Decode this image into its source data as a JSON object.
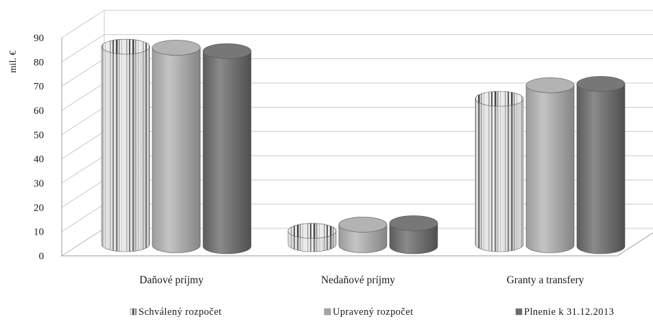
{
  "chart_data": {
    "type": "bar",
    "title": "",
    "xlabel": "",
    "ylabel": "mil. €",
    "ylim": [
      0,
      90
    ],
    "yticks": [
      0,
      10,
      20,
      30,
      40,
      50,
      60,
      70,
      80,
      90
    ],
    "categories": [
      "Daňové príjmy",
      "Nedaňové príjmy",
      "Granty a transfery"
    ],
    "series": [
      {
        "name": "Schválený rozpočet",
        "values": [
          81.5,
          5.5,
          60
        ],
        "color": "#d8d8d8",
        "pattern": "vertical-stripes"
      },
      {
        "name": "Upravený rozpočet",
        "values": [
          81.5,
          8.5,
          66
        ],
        "color": "#a6a6a6",
        "pattern": "solid"
      },
      {
        "name": "Plnenie k 31.12.2013",
        "values": [
          80.5,
          9.5,
          67
        ],
        "color": "#6d6d6d",
        "pattern": "solid"
      }
    ],
    "grid": true,
    "legend_position": "bottom",
    "style": "3d-cylinder"
  }
}
